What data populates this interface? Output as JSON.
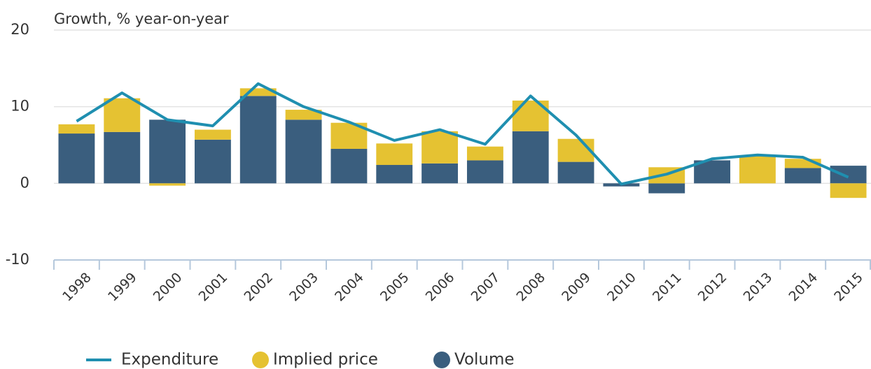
{
  "chart_data": {
    "type": "bar",
    "stacked": true,
    "y_axis_title": "Growth, % year-on-year",
    "categories": [
      "1998",
      "1999",
      "2000",
      "2001",
      "2002",
      "2003",
      "2004",
      "2005",
      "2006",
      "2007",
      "2008",
      "2009",
      "2010",
      "2011",
      "2012",
      "2013",
      "2014",
      "2015"
    ],
    "series": [
      {
        "name": "Expenditure",
        "type": "line",
        "color": "#1f8fb0",
        "values": [
          8.1,
          11.8,
          8.3,
          7.5,
          13.0,
          10.0,
          8.0,
          5.6,
          7.0,
          5.1,
          11.4,
          6.3,
          -0.1,
          1.2,
          3.2,
          3.7,
          3.4,
          0.8
        ]
      },
      {
        "name": "Implied price",
        "type": "bar",
        "color": "#e5c232",
        "values": [
          1.2,
          4.4,
          -0.3,
          1.3,
          1.0,
          1.3,
          3.4,
          2.8,
          4.2,
          1.8,
          4.0,
          3.0,
          0,
          2.1,
          0,
          3.6,
          1.2,
          -1.9
        ]
      },
      {
        "name": "Volume",
        "type": "bar",
        "color": "#3a5e7e",
        "values": [
          6.5,
          6.7,
          8.3,
          5.7,
          11.4,
          8.3,
          4.5,
          2.4,
          2.6,
          3.0,
          6.8,
          2.8,
          -0.4,
          -1.3,
          3.0,
          0,
          2.0,
          2.3
        ]
      }
    ],
    "ylim": [
      -10,
      20
    ],
    "yticks": [
      20,
      10,
      0,
      -10
    ],
    "grid": true,
    "legend": "bottom"
  }
}
